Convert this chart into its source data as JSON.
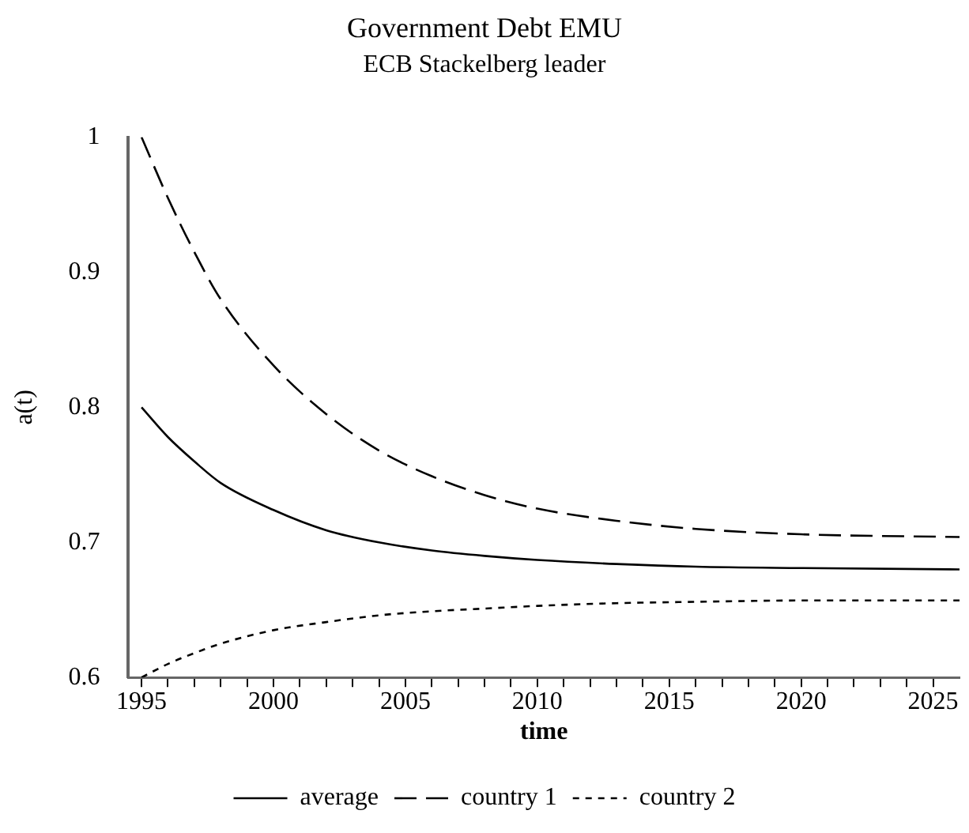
{
  "chart_data": {
    "type": "line",
    "title": "Government Debt EMU",
    "subtitle": "ECB Stackelberg leader",
    "xlabel": "time",
    "ylabel": "a(t)",
    "x": [
      1995,
      1996,
      1997,
      1998,
      2000,
      2002,
      2004,
      2006,
      2008,
      2010,
      2013,
      2016,
      2020,
      2026
    ],
    "series": [
      {
        "name": "average",
        "color": "#000000",
        "line_style": "solid",
        "values": [
          0.8,
          0.778,
          0.76,
          0.744,
          0.724,
          0.709,
          0.7,
          0.694,
          0.69,
          0.687,
          0.684,
          0.682,
          0.681,
          0.68
        ]
      },
      {
        "name": "country 1",
        "color": "#000000",
        "line_style": "dashed",
        "values": [
          1.0,
          0.955,
          0.915,
          0.88,
          0.831,
          0.795,
          0.768,
          0.749,
          0.735,
          0.725,
          0.716,
          0.71,
          0.706,
          0.704
        ]
      },
      {
        "name": "country 2",
        "color": "#000000",
        "line_style": "dotted",
        "values": [
          0.6,
          0.61,
          0.618,
          0.625,
          0.635,
          0.641,
          0.646,
          0.649,
          0.651,
          0.653,
          0.655,
          0.656,
          0.657,
          0.657
        ]
      }
    ],
    "xlim": [
      1994.5,
      2026
    ],
    "xticks": [
      1995,
      {
        "value": 1996,
        "label": null
      },
      {
        "value": 1997,
        "label": null
      },
      {
        "value": 1998,
        "label": null
      },
      {
        "value": 1999,
        "label": null
      },
      2000,
      {
        "value": 2001,
        "label": null
      },
      {
        "value": 2002,
        "label": null
      },
      {
        "value": 2003,
        "label": null
      },
      {
        "value": 2004,
        "label": null
      },
      2005,
      {
        "value": 2006,
        "label": null
      },
      {
        "value": 2007,
        "label": null
      },
      {
        "value": 2008,
        "label": null
      },
      {
        "value": 2009,
        "label": null
      },
      2010,
      {
        "value": 2011,
        "label": null
      },
      {
        "value": 2012,
        "label": null
      },
      {
        "value": 2013,
        "label": null
      },
      {
        "value": 2014,
        "label": null
      },
      2015,
      {
        "value": 2016,
        "label": null
      },
      {
        "value": 2017,
        "label": null
      },
      {
        "value": 2018,
        "label": null
      },
      {
        "value": 2019,
        "label": null
      },
      2020,
      {
        "value": 2021,
        "label": null
      },
      {
        "value": 2022,
        "label": null
      },
      {
        "value": 2023,
        "label": null
      },
      {
        "value": 2024,
        "label": null
      },
      2025
    ],
    "ylim": [
      0.6,
      1
    ],
    "yticks": [
      0.6,
      0.7,
      0.8,
      0.9,
      1
    ],
    "grid": false,
    "legend": "bottom",
    "marker": "none"
  }
}
